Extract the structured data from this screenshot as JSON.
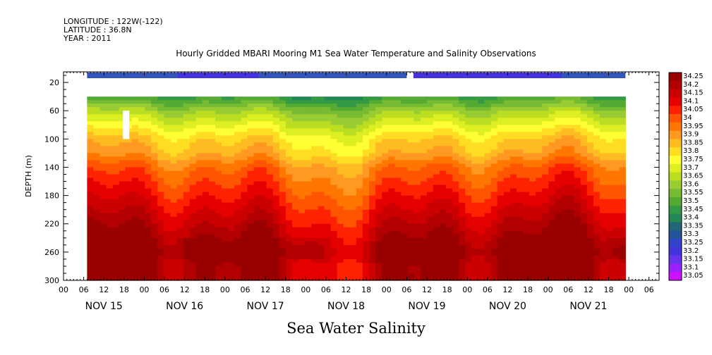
{
  "header": {
    "longitude": "LONGITUDE : 122W(-122)",
    "latitude": "LATITUDE : 36.8N",
    "year": "YEAR : 2011"
  },
  "chart_data": {
    "type": "heatmap",
    "title": "Hourly Gridded MBARI Mooring M1 Sea Water Temperature and Salinity Observations",
    "bottom_title": "Sea Water Salinity",
    "ylabel": "DEPTH (m)",
    "y_ticks": [
      "20",
      "60",
      "100",
      "140",
      "180",
      "220",
      "260",
      "300"
    ],
    "ylim": [
      300,
      5
    ],
    "x_hour_ticks": [
      "00",
      "06",
      "12",
      "18"
    ],
    "x_days": [
      "NOV 15",
      "NOV 16",
      "NOV 17",
      "NOV 18",
      "NOV 19",
      "NOV 20",
      "NOV 21"
    ],
    "colorbar_levels": [
      "34.25",
      "34.2",
      "34.15",
      "34.1",
      "34.05",
      "34",
      "33.95",
      "33.9",
      "33.85",
      "33.8",
      "33.75",
      "33.7",
      "33.65",
      "33.6",
      "33.55",
      "33.5",
      "33.45",
      "33.4",
      "33.35",
      "33.3",
      "33.25",
      "33.2",
      "33.15",
      "33.1",
      "33.05"
    ],
    "colorbar_colors": [
      "#990000",
      "#b20000",
      "#cc0000",
      "#e50000",
      "#ff2200",
      "#ff5500",
      "#ff7700",
      "#ff9922",
      "#ffbb22",
      "#ffdd22",
      "#ffff33",
      "#ddee22",
      "#bbdd22",
      "#99cc33",
      "#77bb33",
      "#55aa33",
      "#339944",
      "#228855",
      "#226677",
      "#225599",
      "#3344cc",
      "#4433dd",
      "#6633ee",
      "#9922ff",
      "#cc11ff"
    ],
    "data_start": "NOV 15 07:00",
    "data_end": "NOV 21 23:00",
    "depth_range_observed": [
      40,
      300
    ],
    "surface_bar_depth": 10,
    "gap_in_surface_bar": "NOV 19 06:00 - NOV 19 09:00",
    "salinity_profile": {
      "depths": [
        40,
        60,
        80,
        100,
        120,
        140,
        160,
        180,
        200,
        220,
        240,
        260,
        280,
        300
      ],
      "values": [
        33.45,
        33.6,
        33.7,
        33.8,
        33.85,
        33.95,
        34.0,
        34.05,
        34.1,
        34.15,
        34.2,
        34.25,
        34.2,
        34.2
      ]
    }
  }
}
